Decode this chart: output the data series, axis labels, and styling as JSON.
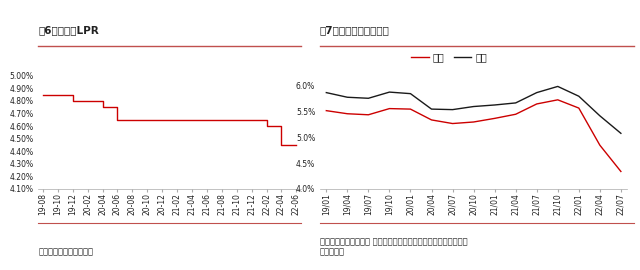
{
  "fig6_title": "图6：五年期LPR",
  "fig6_source": "资料来源：中国人民银行",
  "fig6_x": [
    "19-08",
    "19-10",
    "19-12",
    "20-02",
    "20-04",
    "20-06",
    "20-08",
    "20-10",
    "20-12",
    "21-02",
    "21-04",
    "21-06",
    "21-08",
    "21-10",
    "21-12",
    "22-02",
    "22-04",
    "22-06"
  ],
  "fig6_y": [
    4.85,
    4.85,
    4.8,
    4.8,
    4.75,
    4.65,
    4.65,
    4.65,
    4.65,
    4.65,
    4.65,
    4.65,
    4.65,
    4.65,
    4.65,
    4.6,
    4.45,
    4.45
  ],
  "fig6_ylim": [
    4.1,
    5.0
  ],
  "fig6_yticks": [
    4.1,
    4.2,
    4.3,
    4.4,
    4.5,
    4.6,
    4.7,
    4.8,
    4.9,
    5.0
  ],
  "fig6_color": "#CC0000",
  "fig7_title": "图7：百城主流按揭利率",
  "fig7_source": "资料来源：贝壳研究院 注：统计方法问题，该利率水平往往低于人\n民银行公告",
  "fig7_x": [
    "19/01",
    "19/04",
    "19/07",
    "19/10",
    "20/01",
    "20/04",
    "20/07",
    "20/10",
    "21/01",
    "21/04",
    "21/07",
    "21/10",
    "22/01",
    "22/04",
    "22/07"
  ],
  "fig7_first": [
    5.52,
    5.46,
    5.44,
    5.56,
    5.55,
    5.34,
    5.27,
    5.3,
    5.37,
    5.45,
    5.65,
    5.73,
    5.57,
    4.85,
    4.34
  ],
  "fig7_second": [
    5.87,
    5.78,
    5.76,
    5.88,
    5.85,
    5.55,
    5.54,
    5.6,
    5.63,
    5.67,
    5.87,
    5.99,
    5.8,
    5.42,
    5.08
  ],
  "fig7_ylim": [
    4.0,
    6.2
  ],
  "fig7_yticks": [
    4.0,
    4.5,
    5.0,
    5.5,
    6.0
  ],
  "fig7_color_first": "#CC0000",
  "fig7_color_second": "#1a1a1a",
  "fig7_legend_first": "首套",
  "fig7_legend_second": "二套",
  "bg_color": "#FFFFFF",
  "title_color": "#222222",
  "axis_color": "#aaaaaa",
  "line_color_top": "#C0504D",
  "font_size_title": 7.5,
  "font_size_tick": 5.5,
  "font_size_source": 6.0,
  "font_size_legend": 7.0
}
